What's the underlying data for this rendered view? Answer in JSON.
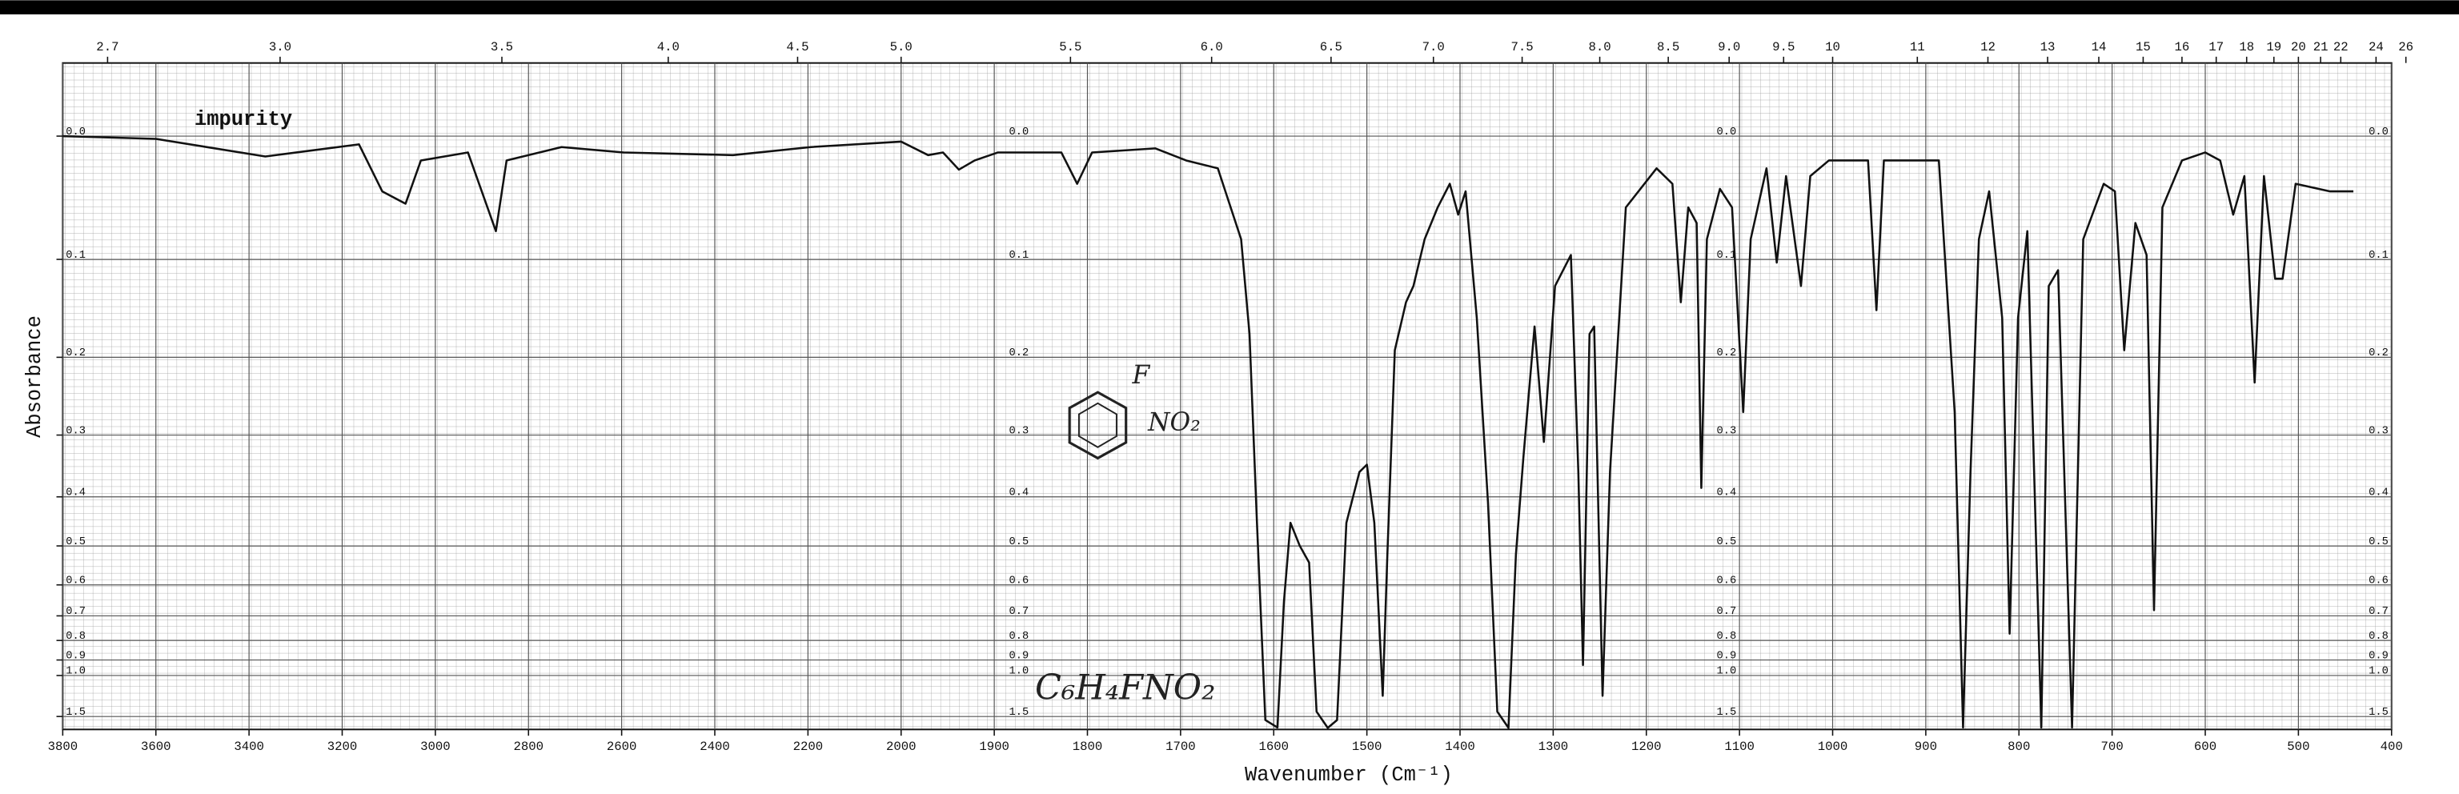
{
  "chart_data": {
    "type": "line",
    "xlabel": "Wavenumber (Cm⁻¹)",
    "ylabel": "Absorbance",
    "annotations": [
      "impurity",
      "F",
      "NO₂",
      "C₆H₄FNO₂"
    ],
    "color": "#111111",
    "xscale": "piecewise",
    "yscale": "absorbance",
    "x2scale": "reciprocal",
    "grid": true,
    "xlim": [
      3800,
      400
    ],
    "xticks": [
      3800,
      3600,
      3400,
      3200,
      3000,
      2800,
      2600,
      2400,
      2200,
      2000,
      1900,
      1800,
      1700,
      1600,
      1500,
      1400,
      1300,
      1200,
      1100,
      1000,
      900,
      800,
      700,
      600,
      500,
      400
    ],
    "x2ticks": [
      2.7,
      {
        "value": 3,
        "label": "3.0"
      },
      3.5,
      {
        "value": 4,
        "label": "4.0"
      },
      4.5,
      {
        "value": 5,
        "label": "5.0"
      },
      5.5,
      {
        "value": 6,
        "label": "6.0"
      },
      6.5,
      {
        "value": 7,
        "label": "7.0"
      },
      7.5,
      {
        "value": 8,
        "label": "8.0"
      },
      8.5,
      {
        "value": 9,
        "label": "9.0"
      },
      9.5,
      10,
      11,
      12,
      13,
      14,
      15,
      16,
      17,
      18,
      19,
      20,
      21,
      22,
      24,
      26
    ],
    "ylim": [
      -0.05,
      2
    ],
    "yticks": [
      {
        "value": 0,
        "label": "0.0"
      },
      0.1,
      0.2,
      0.3,
      0.4,
      0.5,
      0.6,
      0.7,
      0.8,
      0.9,
      {
        "value": 1,
        "label": "1.0"
      },
      1.5
    ],
    "x": [
      3800,
      3600,
      3365,
      3164,
      3114,
      3064,
      3031,
      2930,
      2870,
      2847,
      2729,
      2596,
      2361,
      2194,
      2000,
      1971,
      1955,
      1938,
      1921,
      1896,
      1828,
      1811,
      1795,
      1727,
      1694,
      1660,
      1635,
      1626,
      1618,
      1609,
      1596,
      1589,
      1582,
      1572,
      1562,
      1554,
      1542,
      1532,
      1522,
      1508,
      1500,
      1492,
      1483,
      1478,
      1470,
      1458,
      1450,
      1438,
      1424,
      1411,
      1402,
      1394,
      1382,
      1370,
      1360,
      1348,
      1340,
      1332,
      1320,
      1310,
      1298,
      1281,
      1273,
      1268,
      1261,
      1256,
      1247,
      1239,
      1222,
      1189,
      1172,
      1163,
      1155,
      1146,
      1141,
      1135,
      1121,
      1108,
      1096,
      1088,
      1071,
      1060,
      1050,
      1034,
      1024,
      1004,
      962,
      953,
      945,
      886,
      869,
      860,
      852,
      843,
      832,
      818,
      810,
      801,
      791,
      776,
      768,
      758,
      743,
      731,
      709,
      697,
      687,
      675,
      663,
      655,
      646,
      625,
      600,
      584,
      570,
      558,
      547,
      537,
      525,
      517,
      503,
      466,
      441
    ],
    "values": [
      0,
      0.002,
      0.015,
      0.006,
      0.042,
      0.052,
      0.018,
      0.012,
      0.075,
      0.018,
      0.008,
      0.012,
      0.014,
      0.008,
      0.004,
      0.014,
      0.012,
      0.025,
      0.018,
      0.012,
      0.012,
      0.036,
      0.012,
      0.009,
      0.018,
      0.024,
      0.082,
      0.174,
      0.45,
      1.59,
      1.88,
      0.65,
      0.45,
      0.5,
      0.54,
      1.4,
      1.9,
      1.59,
      0.45,
      0.357,
      0.345,
      0.45,
      1.18,
      0.52,
      0.192,
      0.141,
      0.125,
      0.082,
      0.055,
      0.036,
      0.061,
      0.042,
      0.157,
      0.41,
      1.4,
      1.9,
      0.52,
      0.334,
      0.166,
      0.31,
      0.125,
      0.096,
      0.357,
      0.93,
      0.174,
      0.166,
      1.18,
      0.357,
      0.055,
      0.024,
      0.036,
      0.141,
      0.055,
      0.068,
      0.384,
      0.082,
      0.04,
      0.055,
      0.268,
      0.082,
      0.024,
      0.103,
      0.03,
      0.125,
      0.03,
      0.018,
      0.018,
      0.149,
      0.018,
      0.018,
      0.268,
      1.88,
      0.357,
      0.082,
      0.042,
      0.157,
      0.77,
      0.157,
      0.075,
      1.88,
      0.125,
      0.11,
      1.88,
      0.082,
      0.036,
      0.042,
      0.192,
      0.068,
      0.096,
      0.68,
      0.055,
      0.018,
      0.012,
      0.018,
      0.061,
      0.03,
      0.23,
      0.03,
      0.118,
      0.118,
      0.036,
      0.042,
      0.042
    ]
  }
}
